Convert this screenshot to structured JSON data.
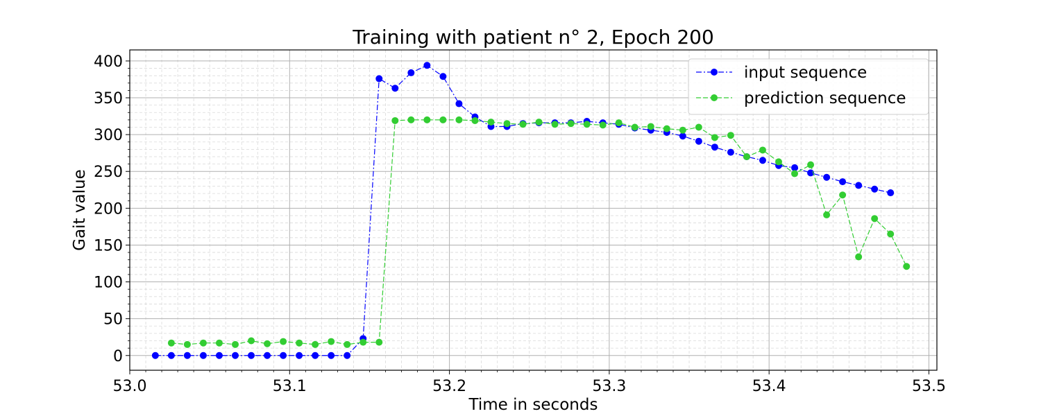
{
  "chart_data": {
    "type": "line",
    "title": "Training with patient n° 2, Epoch 200",
    "xlabel": "Time in seconds",
    "ylabel": "Gait value",
    "xlim": [
      53.0,
      53.505
    ],
    "ylim": [
      -20,
      415
    ],
    "xticks": [
      "53.0",
      "53.1",
      "53.2",
      "53.3",
      "53.4",
      "53.5"
    ],
    "xtick_values": [
      53.0,
      53.1,
      53.2,
      53.3,
      53.4,
      53.5
    ],
    "yticks": [
      "0",
      "50",
      "100",
      "150",
      "200",
      "250",
      "300",
      "350",
      "400"
    ],
    "ytick_values": [
      0,
      50,
      100,
      150,
      200,
      250,
      300,
      350,
      400
    ],
    "grid": true,
    "minor_grid": true,
    "legend_position": "top-right",
    "series": [
      {
        "name": "input sequence",
        "color": "#0000ff",
        "line_style": "dash-dot",
        "x": [
          53.016,
          53.026,
          53.036,
          53.046,
          53.056,
          53.066,
          53.076,
          53.086,
          53.096,
          53.106,
          53.116,
          53.126,
          53.136,
          53.146,
          53.156,
          53.166,
          53.176,
          53.186,
          53.196,
          53.206,
          53.216,
          53.226,
          53.236,
          53.246,
          53.256,
          53.266,
          53.276,
          53.286,
          53.296,
          53.306,
          53.316,
          53.326,
          53.336,
          53.346,
          53.356,
          53.366,
          53.376,
          53.386,
          53.396,
          53.406,
          53.416,
          53.426,
          53.436,
          53.446,
          53.456,
          53.466,
          53.476
        ],
        "y": [
          0,
          0,
          0,
          0,
          0,
          0,
          0,
          0,
          0,
          0,
          0,
          0,
          0,
          23,
          376,
          363,
          384,
          394,
          379,
          342,
          324,
          311,
          311,
          315,
          316,
          316,
          316,
          318,
          316,
          314,
          309,
          306,
          303,
          298,
          291,
          283,
          276,
          270,
          265,
          258,
          255,
          248,
          242,
          236,
          231,
          226,
          221
        ]
      },
      {
        "name": "prediction sequence",
        "color": "#32cd32",
        "line_style": "dashed",
        "x": [
          53.026,
          53.036,
          53.046,
          53.056,
          53.066,
          53.076,
          53.086,
          53.096,
          53.106,
          53.116,
          53.126,
          53.136,
          53.146,
          53.156,
          53.166,
          53.176,
          53.186,
          53.196,
          53.206,
          53.216,
          53.226,
          53.236,
          53.246,
          53.256,
          53.266,
          53.276,
          53.286,
          53.296,
          53.306,
          53.316,
          53.326,
          53.336,
          53.346,
          53.356,
          53.366,
          53.376,
          53.386,
          53.396,
          53.406,
          53.416,
          53.426,
          53.436,
          53.446,
          53.456,
          53.466,
          53.476,
          53.486
        ],
        "y": [
          17,
          15,
          17,
          17,
          15,
          20,
          16,
          19,
          17,
          15,
          19,
          15,
          18,
          18,
          319,
          320,
          320,
          320,
          320,
          319,
          317,
          315,
          314,
          317,
          314,
          315,
          314,
          313,
          316,
          310,
          311,
          308,
          306,
          310,
          296,
          299,
          270,
          279,
          263,
          247,
          259,
          191,
          218,
          134,
          186,
          165,
          121
        ]
      }
    ]
  }
}
